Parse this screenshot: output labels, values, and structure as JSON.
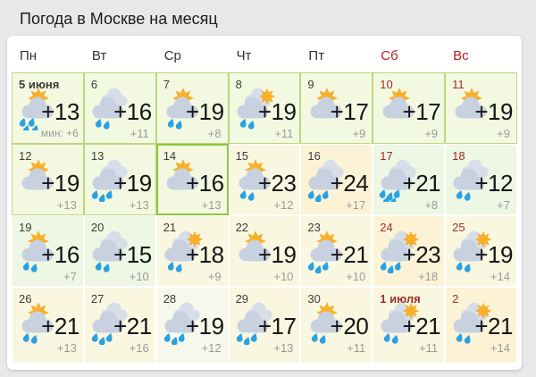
{
  "title": "Погода в Москве на месяц",
  "weekdays": [
    {
      "label": "Пн",
      "weekend": false
    },
    {
      "label": "Вт",
      "weekend": false
    },
    {
      "label": "Ср",
      "weekend": false
    },
    {
      "label": "Чт",
      "weekend": false
    },
    {
      "label": "Пт",
      "weekend": false
    },
    {
      "label": "Сб",
      "weekend": true
    },
    {
      "label": "Вс",
      "weekend": true
    }
  ],
  "days": [
    {
      "label": "5 июня",
      "bold": true,
      "weekend": false,
      "icon": "sun-cloud-rain",
      "rain": 4,
      "temp_day": "+13",
      "temp_night": "мин: +6",
      "tone": "green",
      "highlight": false
    },
    {
      "label": "6",
      "bold": false,
      "weekend": false,
      "icon": "clouds-rain",
      "rain": 2,
      "temp_day": "+16",
      "temp_night": "+11",
      "tone": "green",
      "highlight": false
    },
    {
      "label": "7",
      "bold": false,
      "weekend": false,
      "icon": "sun-cloud-rain",
      "rain": 2,
      "temp_day": "+19",
      "temp_night": "+8",
      "tone": "green",
      "highlight": false
    },
    {
      "label": "8",
      "bold": false,
      "weekend": false,
      "icon": "sun-clouds-rain",
      "rain": 2,
      "temp_day": "+19",
      "temp_night": "+11",
      "tone": "green",
      "highlight": false
    },
    {
      "label": "9",
      "bold": false,
      "weekend": false,
      "icon": "sun-cloud",
      "rain": 0,
      "temp_day": "+17",
      "temp_night": "+9",
      "tone": "green",
      "highlight": false
    },
    {
      "label": "10",
      "bold": false,
      "weekend": true,
      "icon": "sun-cloud",
      "rain": 0,
      "temp_day": "+17",
      "temp_night": "+9",
      "tone": "green",
      "highlight": false
    },
    {
      "label": "11",
      "bold": false,
      "weekend": true,
      "icon": "sun-cloud",
      "rain": 0,
      "temp_day": "+19",
      "temp_night": "+9",
      "tone": "green",
      "highlight": false
    },
    {
      "label": "12",
      "bold": false,
      "weekend": false,
      "icon": "sun-cloud",
      "rain": 0,
      "temp_day": "+19",
      "temp_night": "+13",
      "tone": "green",
      "highlight": false
    },
    {
      "label": "13",
      "bold": false,
      "weekend": false,
      "icon": "clouds-rain",
      "rain": 3,
      "temp_day": "+19",
      "temp_night": "+13",
      "tone": "green",
      "highlight": false
    },
    {
      "label": "14",
      "bold": false,
      "weekend": false,
      "icon": "sun-cloud",
      "rain": 0,
      "temp_day": "+16",
      "temp_night": "+13",
      "tone": "green",
      "highlight": true
    },
    {
      "label": "15",
      "bold": false,
      "weekend": false,
      "icon": "sun-cloud-rain",
      "rain": 2,
      "temp_day": "+23",
      "temp_night": "+12",
      "tone": "pale-yellow",
      "highlight": false
    },
    {
      "label": "16",
      "bold": false,
      "weekend": false,
      "icon": "clouds-rain",
      "rain": 3,
      "temp_day": "+24",
      "temp_night": "+17",
      "tone": "cream",
      "highlight": false
    },
    {
      "label": "17",
      "bold": false,
      "weekend": true,
      "icon": "clouds-rain",
      "rain": 5,
      "temp_day": "+21",
      "temp_night": "+8",
      "tone": "pale-green",
      "highlight": false
    },
    {
      "label": "18",
      "bold": false,
      "weekend": true,
      "icon": "clouds-rain",
      "rain": 2,
      "temp_day": "+12",
      "temp_night": "+7",
      "tone": "pale-green",
      "highlight": false
    },
    {
      "label": "19",
      "bold": false,
      "weekend": false,
      "icon": "sun-cloud-rain",
      "rain": 2,
      "temp_day": "+16",
      "temp_night": "+7",
      "tone": "pale-green",
      "highlight": false
    },
    {
      "label": "20",
      "bold": false,
      "weekend": false,
      "icon": "clouds-rain",
      "rain": 2,
      "temp_day": "+15",
      "temp_night": "+10",
      "tone": "pale-green",
      "highlight": false
    },
    {
      "label": "21",
      "bold": false,
      "weekend": false,
      "icon": "sun-clouds-rain",
      "rain": 2,
      "temp_day": "+18",
      "temp_night": "+9",
      "tone": "pale-yellow",
      "highlight": false
    },
    {
      "label": "22",
      "bold": false,
      "weekend": false,
      "icon": "sun-cloud",
      "rain": 0,
      "temp_day": "+19",
      "temp_night": "+10",
      "tone": "pale-yellow",
      "highlight": false
    },
    {
      "label": "23",
      "bold": false,
      "weekend": false,
      "icon": "sun-cloud-rain",
      "rain": 3,
      "temp_day": "+21",
      "temp_night": "+10",
      "tone": "pale-yellow",
      "highlight": false
    },
    {
      "label": "24",
      "bold": false,
      "weekend": true,
      "icon": "sun-clouds-rain",
      "rain": 3,
      "temp_day": "+23",
      "temp_night": "+18",
      "tone": "cream",
      "highlight": false
    },
    {
      "label": "25",
      "bold": false,
      "weekend": true,
      "icon": "sun-clouds-rain",
      "rain": 2,
      "temp_day": "+19",
      "temp_night": "+14",
      "tone": "pale-yellow",
      "highlight": false
    },
    {
      "label": "26",
      "bold": false,
      "weekend": false,
      "icon": "sun-cloud-rain",
      "rain": 2,
      "temp_day": "+21",
      "temp_night": "+13",
      "tone": "pale-yellow",
      "highlight": false
    },
    {
      "label": "27",
      "bold": false,
      "weekend": false,
      "icon": "clouds-rain",
      "rain": 3,
      "temp_day": "+21",
      "temp_night": "+16",
      "tone": "pale-yellow",
      "highlight": false
    },
    {
      "label": "28",
      "bold": false,
      "weekend": false,
      "icon": "clouds-rain",
      "rain": 3,
      "temp_day": "+19",
      "temp_night": "+12",
      "tone": "pale-neutral",
      "highlight": false
    },
    {
      "label": "29",
      "bold": false,
      "weekend": false,
      "icon": "clouds-rain",
      "rain": 3,
      "temp_day": "+17",
      "temp_night": "+13",
      "tone": "pale-yellow",
      "highlight": false
    },
    {
      "label": "30",
      "bold": false,
      "weekend": false,
      "icon": "sun-cloud-rain",
      "rain": 2,
      "temp_day": "+20",
      "temp_night": "+11",
      "tone": "pale-yellow",
      "highlight": false
    },
    {
      "label": "1 июля",
      "bold": true,
      "weekend": true,
      "icon": "sun-clouds-rain",
      "rain": 2,
      "temp_day": "+21",
      "temp_night": "+11",
      "tone": "pale-yellow",
      "highlight": false
    },
    {
      "label": "2",
      "bold": false,
      "weekend": true,
      "icon": "sun-clouds-rain",
      "rain": 2,
      "temp_day": "+21",
      "temp_night": "+14",
      "tone": "cream",
      "highlight": false
    }
  ],
  "colors": {
    "page_bg": "#e8e8e8",
    "card_bg": "#ffffff",
    "title_color": "#1c1c1c",
    "header_color": "#333333",
    "header_weekend_color": "#b0221b",
    "daynum_color": "#3c3c3c",
    "daynum_weekend_color": "#9e2d26",
    "temp_day_color": "#151515",
    "temp_night_color": "#9a9a9a",
    "cell_green_bg": "#f3f9e0",
    "cell_green_border": "#bcd680",
    "cell_highlight_border": "#8dc63f",
    "cell_pale_yellow": "#faf7e1",
    "cell_cream": "#fcf3d7",
    "cell_pale_green": "#edf7e4",
    "cell_pale_neutral": "#f7f8ec",
    "sun": "#f8b02c",
    "cloud": "#c8d1e0",
    "cloud_back": "#d7dee9",
    "rain": "#2aa2e2"
  }
}
